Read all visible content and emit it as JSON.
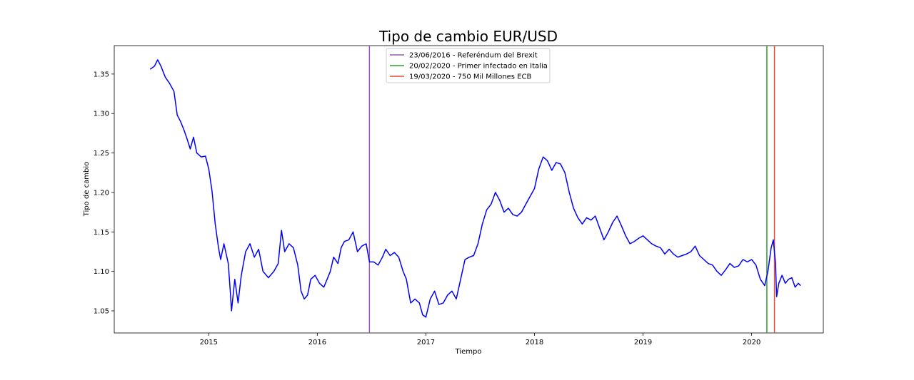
{
  "chart_data": {
    "type": "line",
    "title": "Tipo de cambio EUR/USD",
    "xlabel": "Tiempo",
    "ylabel": "Tipo de cambio",
    "x_axis": "year",
    "xlim": [
      2014.13,
      2020.66
    ],
    "ylim": [
      1.022,
      1.386
    ],
    "x_ticks": [
      {
        "value": 2015,
        "label": "2015"
      },
      {
        "value": 2016,
        "label": "2016"
      },
      {
        "value": 2017,
        "label": "2017"
      },
      {
        "value": 2018,
        "label": "2018"
      },
      {
        "value": 2019,
        "label": "2019"
      },
      {
        "value": 2020,
        "label": "2020"
      }
    ],
    "y_ticks": [
      {
        "value": 1.05,
        "label": "1.05"
      },
      {
        "value": 1.1,
        "label": "1.10"
      },
      {
        "value": 1.15,
        "label": "1.15"
      },
      {
        "value": 1.2,
        "label": "1.20"
      },
      {
        "value": 1.25,
        "label": "1.25"
      },
      {
        "value": 1.3,
        "label": "1.30"
      },
      {
        "value": 1.35,
        "label": "1.35"
      }
    ],
    "grid": false,
    "legend_position": "top-center",
    "series": [
      {
        "color": "#0000ff",
        "points": [
          [
            2014.46,
            1.356
          ],
          [
            2014.5,
            1.36
          ],
          [
            2014.53,
            1.368
          ],
          [
            2014.56,
            1.36
          ],
          [
            2014.6,
            1.346
          ],
          [
            2014.64,
            1.338
          ],
          [
            2014.68,
            1.328
          ],
          [
            2014.71,
            1.298
          ],
          [
            2014.74,
            1.29
          ],
          [
            2014.77,
            1.28
          ],
          [
            2014.8,
            1.268
          ],
          [
            2014.83,
            1.255
          ],
          [
            2014.86,
            1.27
          ],
          [
            2014.89,
            1.25
          ],
          [
            2014.93,
            1.245
          ],
          [
            2014.97,
            1.246
          ],
          [
            2015.0,
            1.23
          ],
          [
            2015.03,
            1.202
          ],
          [
            2015.06,
            1.16
          ],
          [
            2015.09,
            1.13
          ],
          [
            2015.11,
            1.115
          ],
          [
            2015.14,
            1.135
          ],
          [
            2015.18,
            1.11
          ],
          [
            2015.2,
            1.072
          ],
          [
            2015.21,
            1.05
          ],
          [
            2015.24,
            1.09
          ],
          [
            2015.27,
            1.06
          ],
          [
            2015.3,
            1.095
          ],
          [
            2015.34,
            1.125
          ],
          [
            2015.38,
            1.135
          ],
          [
            2015.42,
            1.118
          ],
          [
            2015.46,
            1.128
          ],
          [
            2015.5,
            1.1
          ],
          [
            2015.55,
            1.092
          ],
          [
            2015.6,
            1.1
          ],
          [
            2015.64,
            1.11
          ],
          [
            2015.67,
            1.152
          ],
          [
            2015.7,
            1.125
          ],
          [
            2015.74,
            1.135
          ],
          [
            2015.78,
            1.13
          ],
          [
            2015.82,
            1.108
          ],
          [
            2015.85,
            1.075
          ],
          [
            2015.88,
            1.065
          ],
          [
            2015.91,
            1.07
          ],
          [
            2015.94,
            1.09
          ],
          [
            2015.98,
            1.095
          ],
          [
            2016.02,
            1.085
          ],
          [
            2016.06,
            1.08
          ],
          [
            2016.09,
            1.09
          ],
          [
            2016.12,
            1.1
          ],
          [
            2016.15,
            1.118
          ],
          [
            2016.19,
            1.11
          ],
          [
            2016.22,
            1.13
          ],
          [
            2016.25,
            1.138
          ],
          [
            2016.29,
            1.14
          ],
          [
            2016.33,
            1.15
          ],
          [
            2016.37,
            1.125
          ],
          [
            2016.41,
            1.132
          ],
          [
            2016.45,
            1.135
          ],
          [
            2016.48,
            1.112
          ],
          [
            2016.52,
            1.112
          ],
          [
            2016.56,
            1.108
          ],
          [
            2016.6,
            1.118
          ],
          [
            2016.63,
            1.128
          ],
          [
            2016.67,
            1.12
          ],
          [
            2016.71,
            1.124
          ],
          [
            2016.75,
            1.118
          ],
          [
            2016.79,
            1.1
          ],
          [
            2016.82,
            1.09
          ],
          [
            2016.86,
            1.06
          ],
          [
            2016.9,
            1.065
          ],
          [
            2016.94,
            1.06
          ],
          [
            2016.97,
            1.045
          ],
          [
            2017.0,
            1.042
          ],
          [
            2017.04,
            1.065
          ],
          [
            2017.08,
            1.075
          ],
          [
            2017.12,
            1.058
          ],
          [
            2017.16,
            1.06
          ],
          [
            2017.2,
            1.07
          ],
          [
            2017.24,
            1.075
          ],
          [
            2017.28,
            1.065
          ],
          [
            2017.32,
            1.09
          ],
          [
            2017.36,
            1.115
          ],
          [
            2017.4,
            1.118
          ],
          [
            2017.44,
            1.12
          ],
          [
            2017.48,
            1.135
          ],
          [
            2017.52,
            1.16
          ],
          [
            2017.56,
            1.178
          ],
          [
            2017.6,
            1.185
          ],
          [
            2017.64,
            1.2
          ],
          [
            2017.68,
            1.19
          ],
          [
            2017.72,
            1.175
          ],
          [
            2017.76,
            1.18
          ],
          [
            2017.8,
            1.172
          ],
          [
            2017.84,
            1.17
          ],
          [
            2017.88,
            1.175
          ],
          [
            2017.92,
            1.185
          ],
          [
            2017.96,
            1.195
          ],
          [
            2018.0,
            1.205
          ],
          [
            2018.04,
            1.23
          ],
          [
            2018.08,
            1.245
          ],
          [
            2018.12,
            1.24
          ],
          [
            2018.16,
            1.228
          ],
          [
            2018.2,
            1.238
          ],
          [
            2018.24,
            1.236
          ],
          [
            2018.28,
            1.225
          ],
          [
            2018.32,
            1.2
          ],
          [
            2018.36,
            1.18
          ],
          [
            2018.4,
            1.168
          ],
          [
            2018.44,
            1.16
          ],
          [
            2018.48,
            1.168
          ],
          [
            2018.52,
            1.165
          ],
          [
            2018.56,
            1.17
          ],
          [
            2018.6,
            1.155
          ],
          [
            2018.64,
            1.14
          ],
          [
            2018.68,
            1.15
          ],
          [
            2018.72,
            1.162
          ],
          [
            2018.76,
            1.17
          ],
          [
            2018.8,
            1.158
          ],
          [
            2018.84,
            1.145
          ],
          [
            2018.88,
            1.135
          ],
          [
            2018.92,
            1.138
          ],
          [
            2018.96,
            1.142
          ],
          [
            2019.0,
            1.145
          ],
          [
            2019.04,
            1.14
          ],
          [
            2019.08,
            1.135
          ],
          [
            2019.12,
            1.132
          ],
          [
            2019.16,
            1.13
          ],
          [
            2019.2,
            1.122
          ],
          [
            2019.24,
            1.128
          ],
          [
            2019.28,
            1.122
          ],
          [
            2019.32,
            1.118
          ],
          [
            2019.36,
            1.12
          ],
          [
            2019.4,
            1.122
          ],
          [
            2019.44,
            1.125
          ],
          [
            2019.48,
            1.132
          ],
          [
            2019.52,
            1.12
          ],
          [
            2019.56,
            1.115
          ],
          [
            2019.6,
            1.11
          ],
          [
            2019.64,
            1.108
          ],
          [
            2019.68,
            1.1
          ],
          [
            2019.72,
            1.095
          ],
          [
            2019.76,
            1.102
          ],
          [
            2019.8,
            1.11
          ],
          [
            2019.84,
            1.105
          ],
          [
            2019.88,
            1.107
          ],
          [
            2019.92,
            1.115
          ],
          [
            2019.96,
            1.112
          ],
          [
            2020.0,
            1.115
          ],
          [
            2020.04,
            1.108
          ],
          [
            2020.08,
            1.09
          ],
          [
            2020.12,
            1.082
          ],
          [
            2020.15,
            1.1
          ],
          [
            2020.18,
            1.13
          ],
          [
            2020.2,
            1.14
          ],
          [
            2020.22,
            1.11
          ],
          [
            2020.23,
            1.068
          ],
          [
            2020.25,
            1.085
          ],
          [
            2020.28,
            1.095
          ],
          [
            2020.31,
            1.085
          ],
          [
            2020.34,
            1.09
          ],
          [
            2020.37,
            1.092
          ],
          [
            2020.4,
            1.08
          ],
          [
            2020.43,
            1.085
          ],
          [
            2020.45,
            1.082
          ]
        ]
      }
    ],
    "vlines": [
      {
        "x": 2016.48,
        "color": "#9b59b6",
        "label": "23/06/2016 - Referéndum del Brexit"
      },
      {
        "x": 2020.14,
        "color": "#2ca02c",
        "label": "20/02/2020 - Primer infectado en Italia"
      },
      {
        "x": 2020.21,
        "color": "#e74c3c",
        "label": "19/03/2020 - 750 Mil Millones ECB"
      }
    ]
  }
}
